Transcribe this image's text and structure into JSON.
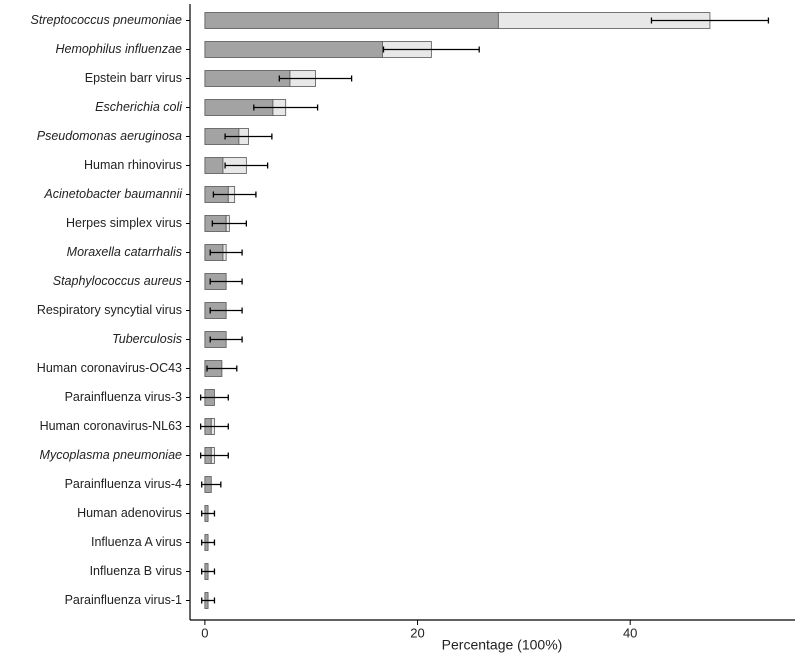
{
  "chart_data": {
    "type": "stacked-bar-horizontal",
    "categories": [
      "Streptococcus pneumoniae",
      "Hemophilus influenzae",
      "Epstein barr virus",
      "Escherichia coli",
      "Pseudomonas aeruginosa",
      "Human rhinovirus",
      "Acinetobacter baumannii",
      "Herpes simplex virus",
      "Moraxella catarrhalis",
      "Staphylococcus aureus",
      "Respiratory syncytial virus",
      "Tuberculosis",
      "Human coronavirus-OC43",
      "Parainfluenza virus-3",
      "Human coronavirus-NL63",
      "Mycoplasma pneumoniae",
      "Parainfluenza virus-4",
      "Human adenovirus",
      "Influenza A virus",
      "Influenza B virus",
      "Parainfluenza virus-1"
    ],
    "italic_categories": [
      true,
      true,
      false,
      true,
      true,
      false,
      true,
      false,
      true,
      true,
      false,
      true,
      false,
      false,
      false,
      true,
      false,
      false,
      false,
      false,
      false
    ],
    "series": [
      {
        "color": "#a3a3a3",
        "values": [
          27.6,
          16.7,
          8.0,
          6.4,
          3.2,
          1.7,
          2.2,
          2.0,
          1.7,
          2.0,
          2.0,
          2.0,
          1.6,
          0.9,
          0.6,
          0.6,
          0.6,
          0.3,
          0.3,
          0.3,
          0.3
        ]
      },
      {
        "color": "#e8e8e8",
        "values": [
          19.9,
          4.6,
          2.4,
          1.2,
          0.9,
          2.2,
          0.6,
          0.3,
          0.3,
          0,
          0,
          0,
          0,
          0,
          0.3,
          0.3,
          0,
          0,
          0,
          0,
          0
        ],
        "errors": [
          5.5,
          4.5,
          3.4,
          3.0,
          2.2,
          2.0,
          2.0,
          1.6,
          1.5,
          1.5,
          1.5,
          1.5,
          1.4,
          1.3,
          1.3,
          1.3,
          0.9,
          0.6,
          0.6,
          0.6,
          0.6
        ]
      }
    ],
    "xlabel": "Percentage (100%)",
    "xlim": [
      -1.4,
      55.5
    ],
    "xticks": [
      0,
      20,
      40
    ]
  }
}
